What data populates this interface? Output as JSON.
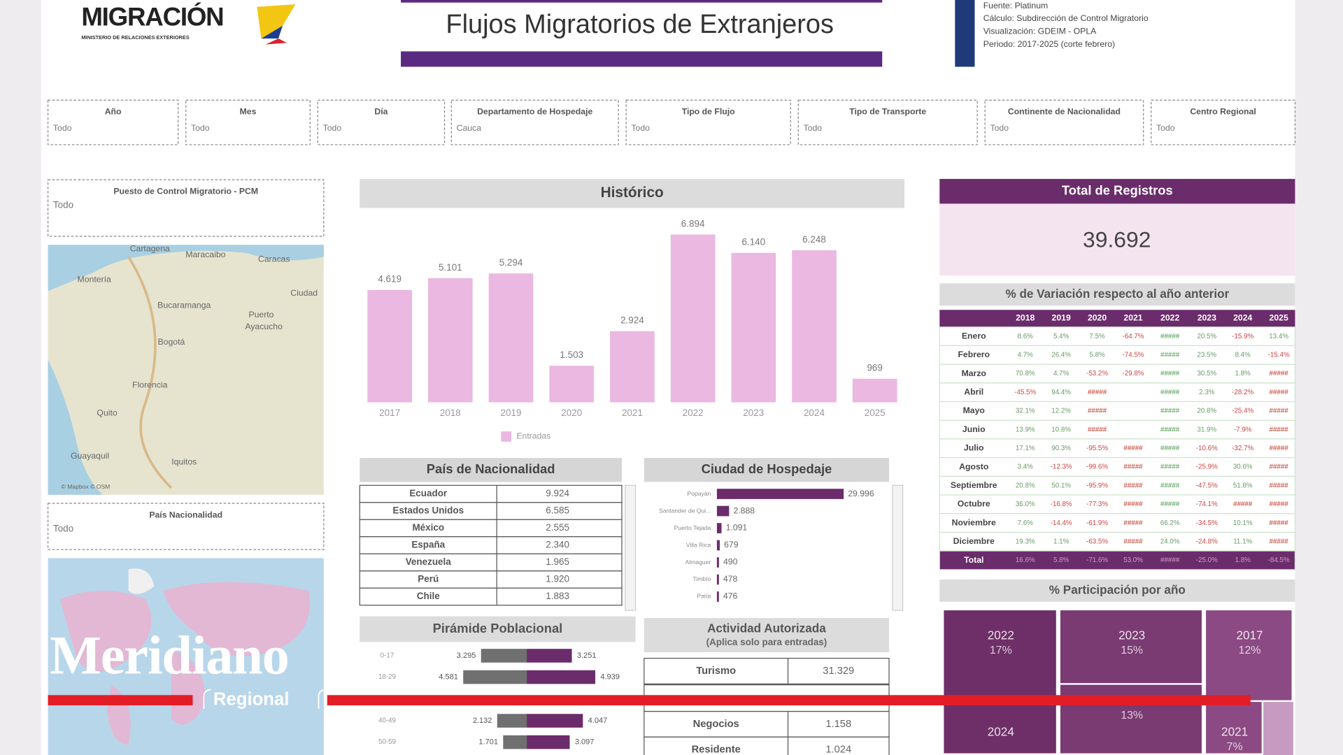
{
  "header": {
    "logo": "MIGRACIÓN",
    "logo_subtitle": "MINISTERIO DE RELACIONES EXTERIORES",
    "title": "Flujos Migratorios de Extranjeros",
    "info": [
      "Fuente: Platinum",
      "Cálculo: Subdirección de Control Migratorio",
      "Visualización: GDEIM - OPLA",
      "Periodo: 2017-2025 (corte febrero)"
    ]
  },
  "filters": [
    {
      "label": "Año",
      "value": "Todo"
    },
    {
      "label": "Mes",
      "value": "Todo"
    },
    {
      "label": "Día",
      "value": "Todo"
    },
    {
      "label": "Departamento de Hospedaje",
      "value": "Cauca"
    },
    {
      "label": "Tipo de Flujo",
      "value": "Todo"
    },
    {
      "label": "Tipo de Transporte",
      "value": "Todo"
    },
    {
      "label": "Continente de Nacionalidad",
      "value": "Todo"
    },
    {
      "label": "Centro Regional",
      "value": "Todo"
    }
  ],
  "side_filters": [
    {
      "label": "Puesto de Control Migratorio - PCM",
      "value": "Todo"
    },
    {
      "label": "País Nacionalidad",
      "value": "Todo"
    }
  ],
  "map_labels": [
    "Cartagena",
    "Maracaibo",
    "Caracas",
    "Montería",
    "Bucaramanga",
    "Ciudad",
    "Puerto",
    "Ayacucho",
    "Bogotá",
    "Florencia",
    "Quito",
    "Guayaquil",
    "Iquitos",
    "© Mapbox © OSM"
  ],
  "chart_data": [
    {
      "type": "bar",
      "title": "Histórico",
      "categories": [
        "2017",
        "2018",
        "2019",
        "2020",
        "2021",
        "2022",
        "2023",
        "2024",
        "2025"
      ],
      "series": [
        {
          "name": "Entradas",
          "color": "#eab8e0",
          "values": [
            4619,
            5101,
            5294,
            1503,
            2924,
            6894,
            6140,
            6248,
            969
          ],
          "value_labels": [
            "4.619",
            "5.101",
            "5.294",
            "1.503",
            "2.924",
            "6.894",
            "6.140",
            "6.248",
            "969"
          ]
        }
      ]
    },
    {
      "type": "hbar",
      "title": "Ciudad de Hospedaje",
      "color": "#6b2c6b",
      "categories": [
        "Popayán",
        "Santander de Qui...",
        "Puerto Tejada",
        "Villa Rica",
        "Almaguer",
        "Timbío",
        "Patía"
      ],
      "values": [
        29996,
        2888,
        1091,
        679,
        490,
        478,
        476
      ],
      "value_labels": [
        "29.996",
        "2.888",
        "1.091",
        "679",
        "490",
        "478",
        "476"
      ]
    },
    {
      "type": "pyramid",
      "title": "Pirámide Poblacional",
      "categories": [
        "0-17",
        "18-29",
        "40-49",
        "50-59"
      ],
      "series": [
        {
          "color": "#707070",
          "values": [
            3295,
            4581,
            2132,
            1701
          ],
          "value_labels": [
            "3.295",
            "4.581",
            "2.132",
            "1.701"
          ]
        },
        {
          "color": "#6b2c6b",
          "values": [
            3251,
            4939,
            4047,
            3097
          ],
          "value_labels": [
            "3.251",
            "4.939",
            "4.047",
            "3.097"
          ]
        }
      ]
    },
    {
      "type": "treemap",
      "title": "% Participación por año",
      "categories": [
        "2022",
        "2023",
        "2017",
        null,
        "2024",
        "2021"
      ],
      "values": [
        17,
        15,
        12,
        13,
        null,
        7
      ],
      "value_labels": [
        "17%",
        "15%",
        "12%",
        "13%",
        null,
        "7%"
      ],
      "colors": [
        "#6e2f68",
        "#7a3a72",
        "#8b4a83",
        "#7a3a72",
        "#6e2f68",
        "#8b4a83"
      ]
    }
  ],
  "nationality_table": {
    "title": "País de Nacionalidad",
    "rows": [
      [
        "Ecuador",
        "9.924"
      ],
      [
        "Estados Unidos",
        "6.585"
      ],
      [
        "México",
        "2.555"
      ],
      [
        "España",
        "2.340"
      ],
      [
        "Venezuela",
        "1.965"
      ],
      [
        "Perú",
        "1.920"
      ],
      [
        "Chile",
        "1.883"
      ]
    ]
  },
  "activity_table": {
    "title": "Actividad Autorizada",
    "subtitle": "(Aplica solo para entradas)",
    "rows": [
      [
        "Turismo",
        "31.329"
      ],
      [
        "Negocios",
        "1.158"
      ],
      [
        "Residente",
        "1.024"
      ]
    ]
  },
  "total": {
    "title": "Total de Registros",
    "value": "39.692"
  },
  "variation_table": {
    "title": "% de Variación respecto al año anterior",
    "columns": [
      "2018",
      "2019",
      "2020",
      "2021",
      "2022",
      "2023",
      "2024",
      "2025"
    ],
    "rows": [
      {
        "label": "Enero",
        "cells": [
          "8.6%",
          "5.4%",
          "7.5%",
          "-64.7%",
          "#####",
          "20.5%",
          "-15.9%",
          "13.4%"
        ]
      },
      {
        "label": "Febrero",
        "cells": [
          "4.7%",
          "26.4%",
          "5.8%",
          "-74.5%",
          "#####",
          "23.5%",
          "8.4%",
          "-15.4%"
        ]
      },
      {
        "label": "Marzo",
        "cells": [
          "70.8%",
          "4.7%",
          "-53.2%",
          "-29.8%",
          "#####",
          "30.5%",
          "1.8%",
          "#####"
        ]
      },
      {
        "label": "Abril",
        "cells": [
          "-45.5%",
          "94.4%",
          "#####",
          null,
          "#####",
          "2.3%",
          "-28.2%",
          "#####"
        ]
      },
      {
        "label": "Mayo",
        "cells": [
          "32.1%",
          "12.2%",
          "#####",
          null,
          "#####",
          "20.8%",
          "-25.4%",
          "#####"
        ]
      },
      {
        "label": "Junio",
        "cells": [
          "13.9%",
          "10.8%",
          "#####",
          null,
          "#####",
          "31.9%",
          "-7.9%",
          "#####"
        ]
      },
      {
        "label": "Julio",
        "cells": [
          "17.1%",
          "90.3%",
          "-95.5%",
          "#####",
          "#####",
          "-10.6%",
          "-32.7%",
          "#####"
        ]
      },
      {
        "label": "Agosto",
        "cells": [
          "3.4%",
          "-12.3%",
          "-99.6%",
          "#####",
          "#####",
          "-25.9%",
          "30.6%",
          "#####"
        ]
      },
      {
        "label": "Septiembre",
        "cells": [
          "20.8%",
          "50.1%",
          "-95.9%",
          "#####",
          "#####",
          "-47.5%",
          "51.8%",
          "#####"
        ]
      },
      {
        "label": "Octubre",
        "cells": [
          "36.0%",
          "-16.8%",
          "-77.3%",
          "#####",
          "#####",
          "-74.1%",
          "#####",
          "#####"
        ]
      },
      {
        "label": "Noviembre",
        "cells": [
          "7.6%",
          "-14.4%",
          "-61.9%",
          "#####",
          "66.2%",
          "-34.5%",
          "10.1%",
          "#####"
        ]
      },
      {
        "label": "Diciembre",
        "cells": [
          "19.3%",
          "1.1%",
          "-63.5%",
          "#####",
          "24.0%",
          "-24.8%",
          "11.1%",
          "#####"
        ]
      },
      {
        "label": "Total",
        "cells": [
          "16.6%",
          "5.8%",
          "-71.6%",
          "53.0%",
          "#####",
          "-25.0%",
          "1.8%",
          "-84.5%"
        ]
      }
    ]
  },
  "branding": {
    "name": "Meridiano",
    "tagline": "Regional"
  }
}
